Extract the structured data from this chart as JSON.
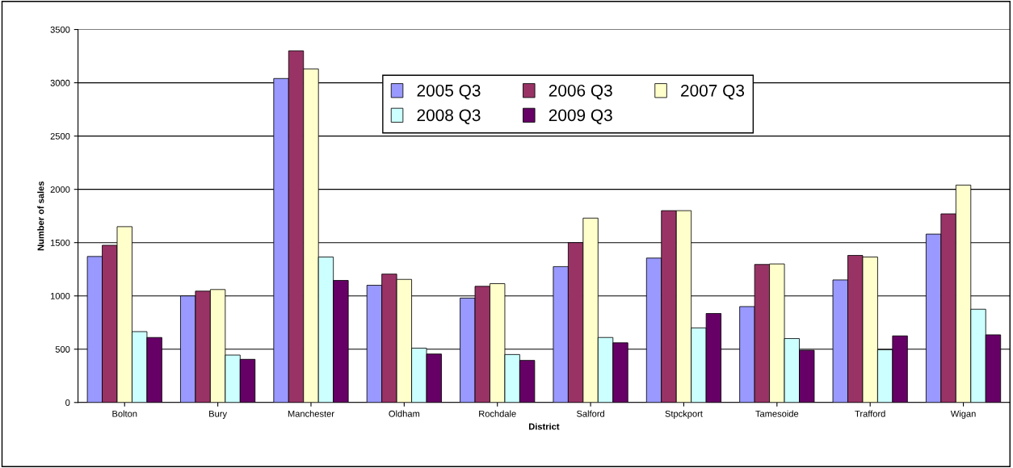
{
  "chart_data": {
    "type": "bar",
    "xlabel": "District",
    "ylabel": "Number of sales",
    "categories": [
      "Bolton",
      "Bury",
      "Manchester",
      "Oldham",
      "Rochdale",
      "Salford",
      "Stpckport",
      "Tamesoide",
      "Trafford",
      "Wigan"
    ],
    "series": [
      {
        "name": "2005 Q3",
        "color": "#9999ff",
        "values": [
          1370,
          1000,
          3040,
          1100,
          980,
          1275,
          1355,
          900,
          1150,
          1580
        ]
      },
      {
        "name": "2006 Q3",
        "color": "#993366",
        "values": [
          1475,
          1045,
          3300,
          1205,
          1090,
          1500,
          1800,
          1295,
          1380,
          1770
        ]
      },
      {
        "name": "2007 Q3",
        "color": "#ffffcc",
        "values": [
          1650,
          1060,
          3130,
          1155,
          1115,
          1730,
          1800,
          1300,
          1365,
          2040
        ]
      },
      {
        "name": "2008 Q3",
        "color": "#ccffff",
        "values": [
          665,
          445,
          1365,
          510,
          450,
          610,
          700,
          600,
          495,
          875
        ]
      },
      {
        "name": "2009 Q3",
        "color": "#660066",
        "values": [
          610,
          405,
          1145,
          455,
          395,
          560,
          835,
          490,
          625,
          635
        ]
      }
    ],
    "ylim": [
      0,
      3500
    ],
    "yticks": [
      0,
      500,
      1000,
      1500,
      2000,
      2500,
      3000,
      3500
    ],
    "grid": "y",
    "legend": "top"
  }
}
